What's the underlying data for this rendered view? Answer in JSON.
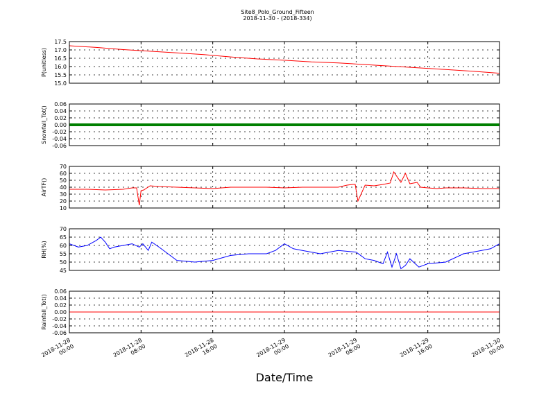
{
  "title": "Site8_Polo_Ground_Fifteen",
  "subtitle": "2018-11-30 - (2018-334)",
  "xlabel": "Date/Time",
  "x_ticks": [
    [
      "2018-11-28",
      "00:00"
    ],
    [
      "2018-11-28",
      "08:00"
    ],
    [
      "2018-11-28",
      "16:00"
    ],
    [
      "2018-11-29",
      "00:00"
    ],
    [
      "2018-11-29",
      "08:00"
    ],
    [
      "2018-11-29",
      "16:00"
    ],
    [
      "2018-11-30",
      "00:00"
    ]
  ],
  "colors": {
    "p": "#ff0000",
    "snow": "#008000",
    "air": "#ff0000",
    "rh": "#0000ff",
    "rain": "#ff0000"
  },
  "chart_data": [
    {
      "type": "line",
      "ylabel": "P(unitless)",
      "ylim": [
        15.0,
        17.5
      ],
      "y_ticks": [
        "15.0",
        "15.5",
        "16.0",
        "16.5",
        "17.0",
        "17.5"
      ],
      "x_hours": [
        0,
        3,
        6,
        9,
        12,
        15,
        18,
        21,
        24,
        27,
        30,
        33,
        36,
        39,
        42,
        45,
        48
      ],
      "values": [
        17.25,
        17.15,
        17.02,
        16.92,
        16.82,
        16.72,
        16.58,
        16.46,
        16.38,
        16.28,
        16.22,
        16.12,
        16.02,
        15.92,
        15.82,
        15.72,
        15.6
      ],
      "grid": true,
      "color": "#ff0000"
    },
    {
      "type": "line",
      "ylabel": "Snowfall_Tot()",
      "ylim": [
        -0.06,
        0.06
      ],
      "y_ticks": [
        "-0.06",
        "-0.04",
        "-0.02",
        "0.00",
        "0.02",
        "0.04",
        "0.06"
      ],
      "x_hours": [
        0,
        48
      ],
      "values": [
        0.0,
        0.0
      ],
      "grid": true,
      "color": "#008000"
    },
    {
      "type": "line",
      "ylabel": "AirTF()",
      "ylim": [
        10,
        70
      ],
      "y_ticks": [
        "10",
        "20",
        "30",
        "40",
        "50",
        "60",
        "70"
      ],
      "x_hours": [
        0,
        2,
        4,
        6,
        7,
        7.5,
        7.8,
        8.0,
        8.3,
        9,
        10,
        12,
        14,
        16,
        18,
        20,
        22,
        24,
        26,
        28,
        30,
        31,
        31.6,
        31.9,
        32.2,
        33,
        34,
        35,
        35.8,
        36.2,
        37,
        37.5,
        38,
        38.8,
        39.2,
        40,
        41,
        42,
        44,
        46,
        48
      ],
      "values": [
        37,
        37,
        36,
        37,
        39,
        39,
        14,
        35,
        36,
        42,
        41,
        40,
        39,
        38,
        40,
        40,
        40,
        39,
        40,
        40,
        40,
        43,
        44,
        44,
        20,
        43,
        42,
        44,
        46,
        62,
        47,
        60,
        45,
        47,
        40,
        39,
        38,
        39,
        39,
        38,
        38
      ],
      "grid": true,
      "color": "#ff0000"
    },
    {
      "type": "line",
      "ylabel": "RH(%)",
      "ylim": [
        45,
        70
      ],
      "y_ticks": [
        "45",
        "50",
        "55",
        "60",
        "65",
        "70"
      ],
      "x_hours": [
        0,
        1,
        2,
        3,
        3.5,
        4,
        4.5,
        5,
        6,
        7,
        7.8,
        8.2,
        8.8,
        9.2,
        10,
        11,
        12,
        14,
        16,
        18,
        20,
        22,
        23,
        24,
        25,
        26,
        28,
        30,
        32,
        33,
        34,
        35,
        35.5,
        36,
        36.5,
        37,
        37.5,
        38,
        39,
        40,
        42,
        44,
        46,
        47,
        48
      ],
      "values": [
        61,
        59,
        60,
        63,
        65,
        62,
        58,
        59,
        60,
        61,
        59,
        61,
        57,
        62,
        59,
        55,
        51,
        50,
        51,
        54,
        55,
        55,
        57,
        61,
        58,
        57,
        55,
        57,
        56,
        52,
        51,
        49,
        56,
        47,
        55,
        46,
        48,
        52,
        47,
        49,
        50,
        55,
        57,
        58,
        61
      ],
      "grid": true,
      "color": "#0000ff"
    },
    {
      "type": "line",
      "ylabel": "Rainfall_Tot()",
      "ylim": [
        -0.06,
        0.06
      ],
      "y_ticks": [
        "-0.06",
        "-0.04",
        "-0.02",
        "0.00",
        "0.02",
        "0.04",
        "0.06"
      ],
      "x_hours": [
        0,
        48
      ],
      "values": [
        0.0,
        0.0
      ],
      "grid": true,
      "color": "#ff0000"
    }
  ]
}
